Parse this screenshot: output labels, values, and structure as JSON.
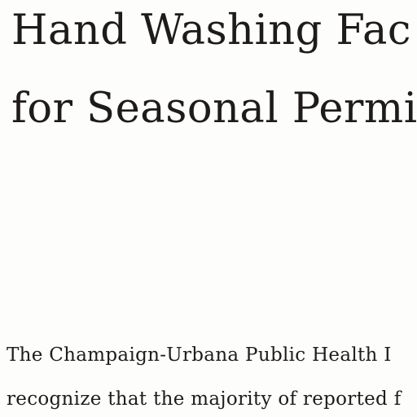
{
  "document": {
    "title_lines": [
      "Hand Washing Fac",
      "for Seasonal Permit"
    ],
    "body_lines": [
      "The Champaign-Urbana Public Health I",
      "recognize that the majority of reported f"
    ]
  }
}
